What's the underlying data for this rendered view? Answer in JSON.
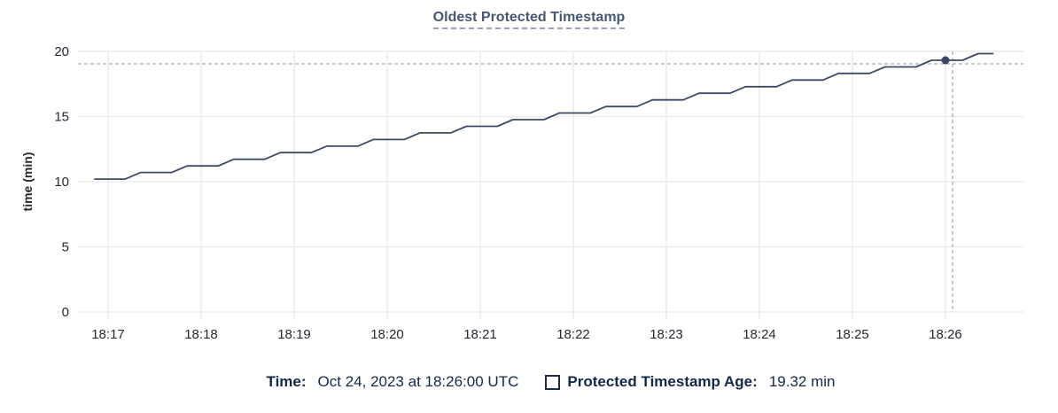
{
  "title": {
    "text": "Oldest Protected Timestamp"
  },
  "y_axis_title": "time (min)",
  "chart_data": {
    "type": "line",
    "title": "Oldest Protected Timestamp",
    "xlabel": "",
    "ylabel": "time (min)",
    "ylim": [
      0,
      20
    ],
    "y_ticks": [
      0,
      5,
      10,
      15,
      20
    ],
    "x_ticks": [
      "18:17",
      "18:18",
      "18:19",
      "18:20",
      "18:21",
      "18:22",
      "18:23",
      "18:24",
      "18:25",
      "18:26"
    ],
    "grid": true,
    "legend_position": "bottom",
    "series": [
      {
        "name": "Protected Timestamp Age",
        "unit": "min",
        "points_note": "t = seconds after 18:17:00, v = minutes",
        "points": [
          [
            -9,
            10.2
          ],
          [
            11,
            10.2
          ],
          [
            21,
            10.71
          ],
          [
            41,
            10.71
          ],
          [
            51,
            11.21
          ],
          [
            71,
            11.21
          ],
          [
            81,
            11.72
          ],
          [
            101,
            11.72
          ],
          [
            111,
            12.23
          ],
          [
            131,
            12.23
          ],
          [
            141,
            12.73
          ],
          [
            161,
            12.73
          ],
          [
            171,
            13.24
          ],
          [
            191,
            13.24
          ],
          [
            201,
            13.75
          ],
          [
            221,
            13.75
          ],
          [
            231,
            14.25
          ],
          [
            251,
            14.25
          ],
          [
            261,
            14.76
          ],
          [
            281,
            14.76
          ],
          [
            291,
            15.27
          ],
          [
            311,
            15.27
          ],
          [
            321,
            15.77
          ],
          [
            341,
            15.77
          ],
          [
            351,
            16.28
          ],
          [
            371,
            16.28
          ],
          [
            381,
            16.79
          ],
          [
            401,
            16.79
          ],
          [
            411,
            17.29
          ],
          [
            431,
            17.29
          ],
          [
            441,
            17.8
          ],
          [
            461,
            17.8
          ],
          [
            471,
            18.31
          ],
          [
            491,
            18.31
          ],
          [
            501,
            18.81
          ],
          [
            521,
            18.81
          ],
          [
            531,
            19.32
          ],
          [
            551,
            19.32
          ],
          [
            561,
            19.83
          ],
          [
            571,
            19.83
          ]
        ]
      }
    ],
    "hovered_point": {
      "time": "18:26:00",
      "t": 540,
      "value": 19.32
    },
    "crosshair": {
      "t": 544.6,
      "value": 19.05
    }
  },
  "tooltip": {
    "time_label": "Time:",
    "time_value": "Oct 24, 2023 at 18:26:00 UTC",
    "series_label": "Protected Timestamp Age:",
    "series_value": "19.32 min"
  },
  "colors": {
    "line": "#3c4a63",
    "dot": "#394661",
    "title": "#475872",
    "grid": "#ececec",
    "crosshair": "#a0afb9",
    "tick_text": "#242a35",
    "legend_text": "#13294a"
  }
}
